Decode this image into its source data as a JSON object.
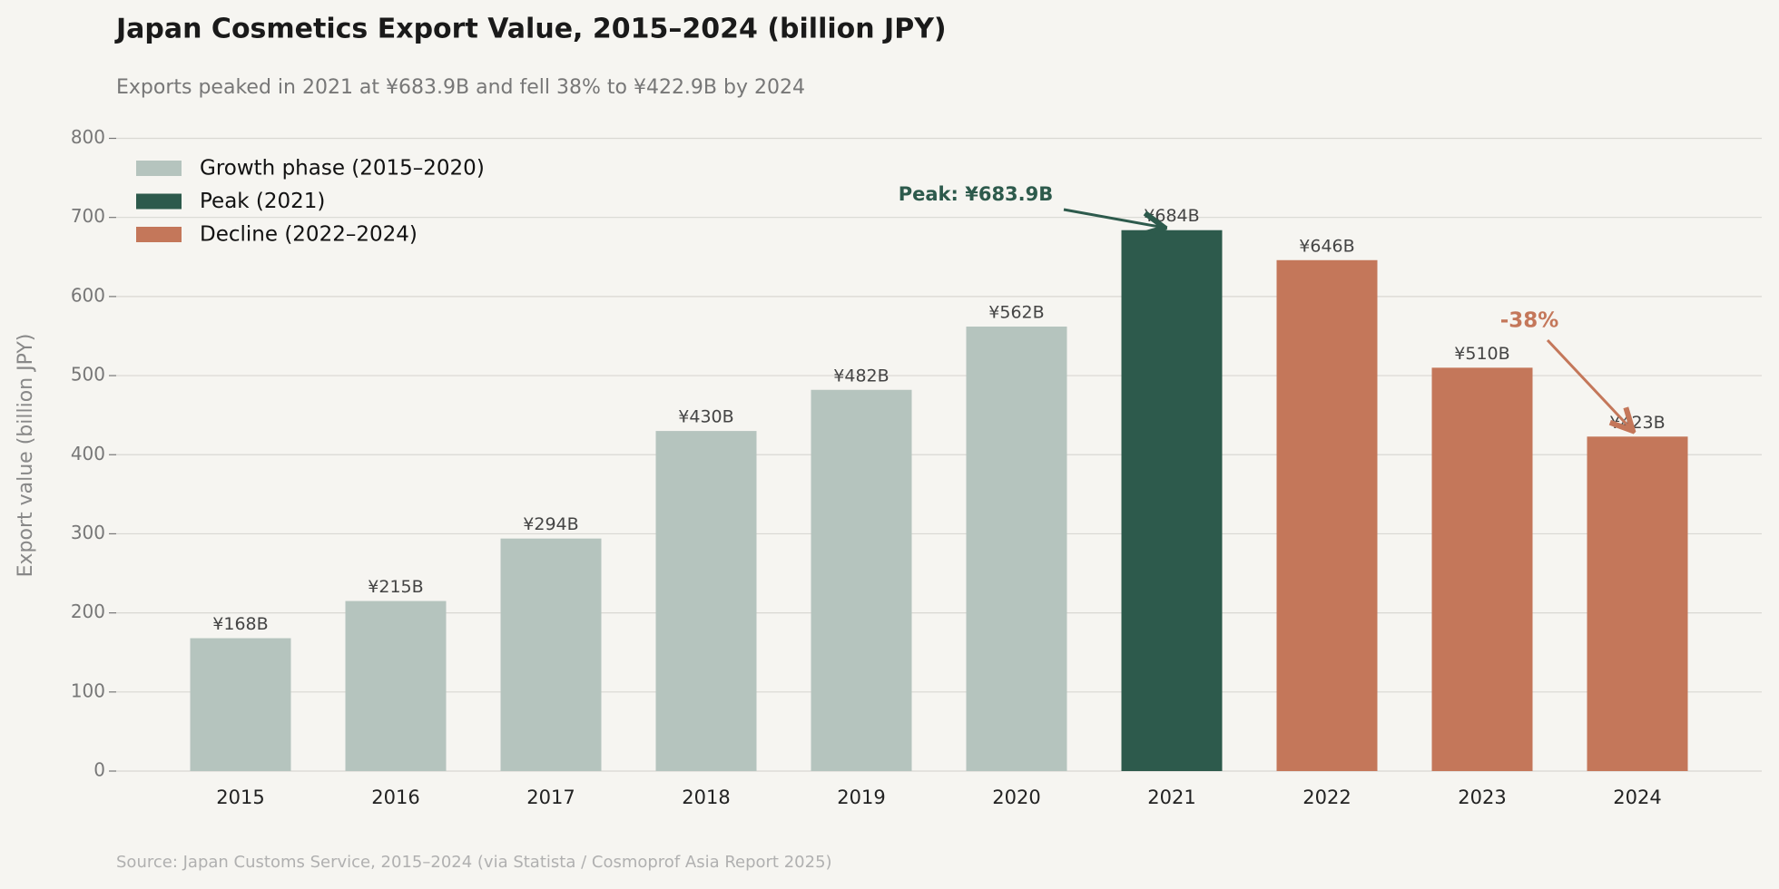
{
  "chart_data": {
    "type": "bar",
    "title": "Japan Cosmetics Export Value, 2015–2024 (billion JPY)",
    "subtitle": "Exports peaked in 2021 at ¥683.9B and fell 38% to ¥422.9B by 2024",
    "y_label": "Export value (billion JPY)",
    "source": "Source: Japan Customs Service, 2015–2024 (via Statista / Cosmoprof Asia Report 2025)",
    "categories": [
      "2015",
      "2016",
      "2017",
      "2018",
      "2019",
      "2020",
      "2021",
      "2022",
      "2023",
      "2024"
    ],
    "series": [
      {
        "name": "Growth phase (2015–2020)",
        "color": "#b5c4be",
        "values": [
          168,
          215,
          294,
          430,
          482,
          562,
          null,
          null,
          null,
          null
        ],
        "value_labels": [
          "¥168B",
          "¥215B",
          "¥294B",
          "¥430B",
          "¥482B",
          "¥562B",
          null,
          null,
          null,
          null
        ]
      },
      {
        "name": "Peak (2021)",
        "color": "#2d5a4c",
        "values": [
          null,
          null,
          null,
          null,
          null,
          null,
          683.9,
          null,
          null,
          null
        ],
        "value_labels": [
          null,
          null,
          null,
          null,
          null,
          null,
          "¥684B",
          null,
          null,
          null
        ]
      },
      {
        "name": "Decline (2022–2024)",
        "color": "#c4775a",
        "values": [
          null,
          null,
          null,
          null,
          null,
          null,
          null,
          646,
          510,
          422.9
        ],
        "value_labels": [
          null,
          null,
          null,
          null,
          null,
          null,
          null,
          "¥646B",
          "¥510B",
          "¥423B"
        ]
      }
    ],
    "annotations": [
      {
        "text": "Peak: ¥683.9B"
      },
      {
        "text": "-38%"
      }
    ],
    "ylim": [
      0,
      800
    ],
    "yticks": [
      0,
      100,
      200,
      300,
      400,
      500,
      600,
      700,
      800
    ],
    "grid": true,
    "legend": "upper left"
  }
}
